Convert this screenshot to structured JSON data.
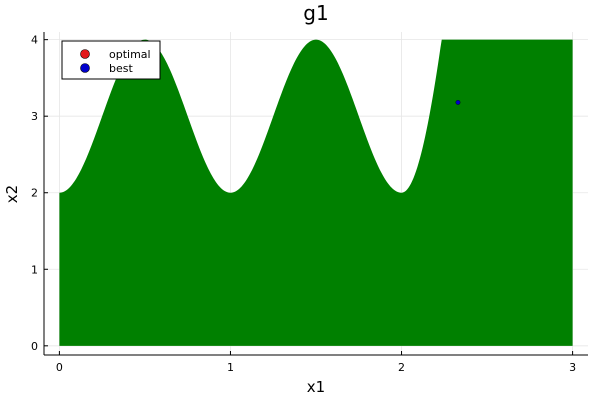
{
  "chart_data": {
    "type": "area",
    "title": "g1",
    "xlabel": "x1",
    "ylabel": "x2",
    "xlim": [
      -0.09,
      3.09
    ],
    "ylim": [
      -0.12,
      4.1
    ],
    "xticks": [
      0,
      1,
      2,
      3
    ],
    "yticks": [
      0,
      1,
      2,
      3,
      4
    ],
    "grid": true,
    "legend_position": "top-left",
    "feasible_region": {
      "name": "",
      "color": "#008000",
      "x_domain": [
        0,
        3
      ],
      "y_floor": 0,
      "y_cap": 4,
      "boundary": "x2 = 3 - cos(2*pi*x1) + (x1 >= 2 ? 20*(x1-2)^2 : 0)"
    },
    "series": [
      {
        "name": "optimal",
        "color": "#e31a1c",
        "points": []
      },
      {
        "name": "best",
        "color": "#0000cc",
        "points": [
          [
            2.33,
            3.18
          ]
        ]
      }
    ]
  }
}
